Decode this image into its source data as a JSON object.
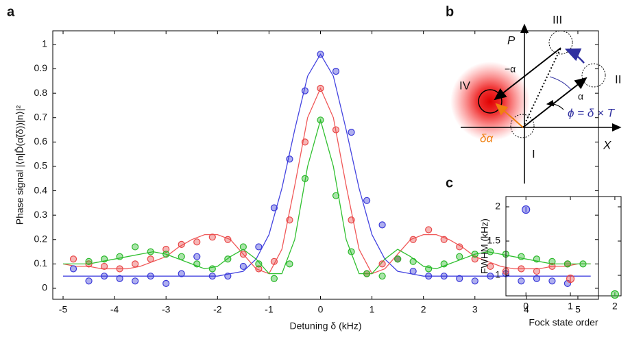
{
  "chart_data": [
    {
      "type": "scatter",
      "label": "a",
      "x_label": "Detuning δ (kHz)",
      "y_label": "Phase signal |⟨n|D̂(α̃(δ))|n⟩|²",
      "xlim": [
        -5.2,
        5.4
      ],
      "ylim": [
        -0.045,
        1.056
      ],
      "xticks": [
        -5,
        -4,
        -3,
        -2,
        -1,
        0,
        1,
        2,
        3,
        4,
        5
      ],
      "yticks": [
        0,
        0.1,
        0.2,
        0.3,
        0.4,
        0.5,
        0.6,
        0.7,
        0.8,
        0.9,
        1
      ],
      "series": [
        {
          "color": "#3838d8",
          "x": [
            -4.8,
            -4.5,
            -4.2,
            -3.9,
            -3.6,
            -3.3,
            -3.0,
            -2.7,
            -2.4,
            -2.1,
            -1.8,
            -1.5,
            -1.2,
            -0.9,
            -0.6,
            -0.3,
            0,
            0.3,
            0.6,
            0.9,
            1.2,
            1.5,
            1.8,
            2.1,
            2.4,
            2.7,
            3.0,
            3.3,
            3.6,
            3.9,
            4.2,
            4.5,
            4.8
          ],
          "values": [
            0.08,
            0.03,
            0.05,
            0.04,
            0.03,
            0.05,
            0.02,
            0.06,
            0.13,
            0.05,
            0.05,
            0.09,
            0.17,
            0.33,
            0.53,
            0.81,
            0.96,
            0.89,
            0.64,
            0.36,
            0.26,
            0.12,
            0.07,
            0.05,
            0.05,
            0.04,
            0.03,
            0.05,
            0.06,
            0.03,
            0.04,
            0.03,
            0.02
          ]
        },
        {
          "color": "#e84848",
          "x": [
            -4.8,
            -4.5,
            -4.2,
            -3.9,
            -3.6,
            -3.3,
            -3.0,
            -2.7,
            -2.4,
            -2.1,
            -1.8,
            -1.5,
            -1.2,
            -0.9,
            -0.6,
            -0.3,
            0,
            0.3,
            0.6,
            0.9,
            1.2,
            1.5,
            1.8,
            2.1,
            2.4,
            2.7,
            3.0,
            3.3,
            3.6,
            3.9,
            4.2,
            4.5,
            4.8
          ],
          "values": [
            0.12,
            0.1,
            0.09,
            0.08,
            0.1,
            0.12,
            0.16,
            0.18,
            0.19,
            0.21,
            0.2,
            0.14,
            0.08,
            0.11,
            0.28,
            0.6,
            0.82,
            0.65,
            0.28,
            0.06,
            0.1,
            0.12,
            0.2,
            0.24,
            0.2,
            0.17,
            0.12,
            0.09,
            0.07,
            0.08,
            0.07,
            0.09,
            0.1
          ]
        },
        {
          "color": "#28b828",
          "x": [
            -4.5,
            -4.2,
            -3.9,
            -3.6,
            -3.3,
            -3.0,
            -2.7,
            -2.4,
            -2.1,
            -1.8,
            -1.5,
            -1.2,
            -0.9,
            -0.6,
            -0.3,
            0,
            0.3,
            0.6,
            0.9,
            1.2,
            1.5,
            1.8,
            2.1,
            2.4,
            2.7,
            3.0,
            3.3,
            3.6,
            3.9,
            4.2,
            4.5,
            4.8,
            5.1
          ],
          "values": [
            0.11,
            0.12,
            0.13,
            0.17,
            0.15,
            0.14,
            0.13,
            0.1,
            0.08,
            0.12,
            0.17,
            0.1,
            0.04,
            0.1,
            0.45,
            0.69,
            0.38,
            0.15,
            0.06,
            0.05,
            0.12,
            0.11,
            0.08,
            0.1,
            0.13,
            0.14,
            0.15,
            0.14,
            0.13,
            0.12,
            0.11,
            0.1,
            0.1
          ]
        }
      ],
      "fit_x": [
        -5,
        -4.75,
        -4.5,
        -4.25,
        -4,
        -3.75,
        -3.5,
        -3.25,
        -3,
        -2.75,
        -2.5,
        -2.25,
        -2,
        -1.75,
        -1.5,
        -1.25,
        -1,
        -0.75,
        -0.5,
        -0.25,
        0,
        0.25,
        0.5,
        0.75,
        1,
        1.25,
        1.5,
        1.75,
        2,
        2.25,
        2.5,
        2.75,
        3,
        3.25,
        3.5,
        3.75,
        4,
        4.25,
        4.5,
        4.75,
        5,
        5.25
      ],
      "fits": [
        {
          "color": "#4444e0",
          "values": [
            0.05,
            0.05,
            0.05,
            0.05,
            0.05,
            0.05,
            0.05,
            0.05,
            0.05,
            0.05,
            0.05,
            0.05,
            0.05,
            0.06,
            0.07,
            0.12,
            0.22,
            0.41,
            0.65,
            0.87,
            0.96,
            0.87,
            0.65,
            0.41,
            0.22,
            0.12,
            0.07,
            0.06,
            0.05,
            0.05,
            0.05,
            0.05,
            0.05,
            0.05,
            0.05,
            0.05,
            0.05,
            0.05,
            0.05,
            0.05,
            0.05,
            0.05
          ]
        },
        {
          "color": "#f05858",
          "values": [
            0.1,
            0.09,
            0.09,
            0.08,
            0.08,
            0.08,
            0.09,
            0.11,
            0.13,
            0.17,
            0.2,
            0.22,
            0.22,
            0.2,
            0.14,
            0.08,
            0.06,
            0.16,
            0.42,
            0.7,
            0.82,
            0.7,
            0.42,
            0.16,
            0.06,
            0.08,
            0.14,
            0.2,
            0.22,
            0.22,
            0.2,
            0.17,
            0.13,
            0.11,
            0.09,
            0.08,
            0.08,
            0.08,
            0.09,
            0.09,
            0.1,
            0.1
          ]
        },
        {
          "color": "#30c030",
          "values": [
            0.1,
            0.1,
            0.1,
            0.11,
            0.12,
            0.13,
            0.14,
            0.15,
            0.14,
            0.12,
            0.1,
            0.08,
            0.09,
            0.13,
            0.16,
            0.12,
            0.06,
            0.06,
            0.2,
            0.5,
            0.69,
            0.5,
            0.2,
            0.06,
            0.06,
            0.12,
            0.16,
            0.13,
            0.09,
            0.08,
            0.1,
            0.12,
            0.14,
            0.15,
            0.14,
            0.13,
            0.12,
            0.11,
            0.1,
            0.1,
            0.1,
            0.1
          ]
        }
      ]
    },
    {
      "type": "scatter",
      "label": "c",
      "x_label": "Fock state order",
      "y_label": "FWHM (kHz)",
      "xlim": [
        -0.45,
        2.14
      ],
      "ylim": [
        0.7,
        2.15
      ],
      "xticks": [
        0,
        1,
        2
      ],
      "yticks": [
        1,
        1.5,
        2
      ],
      "series": [
        {
          "color": "#3838d8",
          "x": [
            0
          ],
          "values": [
            1.96
          ],
          "errors": [
            0.04
          ]
        },
        {
          "color": "#e84848",
          "x": [
            1
          ],
          "values": [
            0.95
          ],
          "errors": [
            0.06
          ]
        },
        {
          "color": "#28b828",
          "x": [
            2
          ],
          "values": [
            0.72
          ],
          "errors": [
            0.02
          ]
        }
      ]
    }
  ],
  "diagram": {
    "label": "b",
    "axis_p": "P",
    "axis_x": "X",
    "states": [
      "I",
      "II",
      "III",
      "IV"
    ],
    "minus_alpha": "−α",
    "alpha": "α",
    "delta_alpha": "δα",
    "phase": "ϕ = δ × T"
  }
}
